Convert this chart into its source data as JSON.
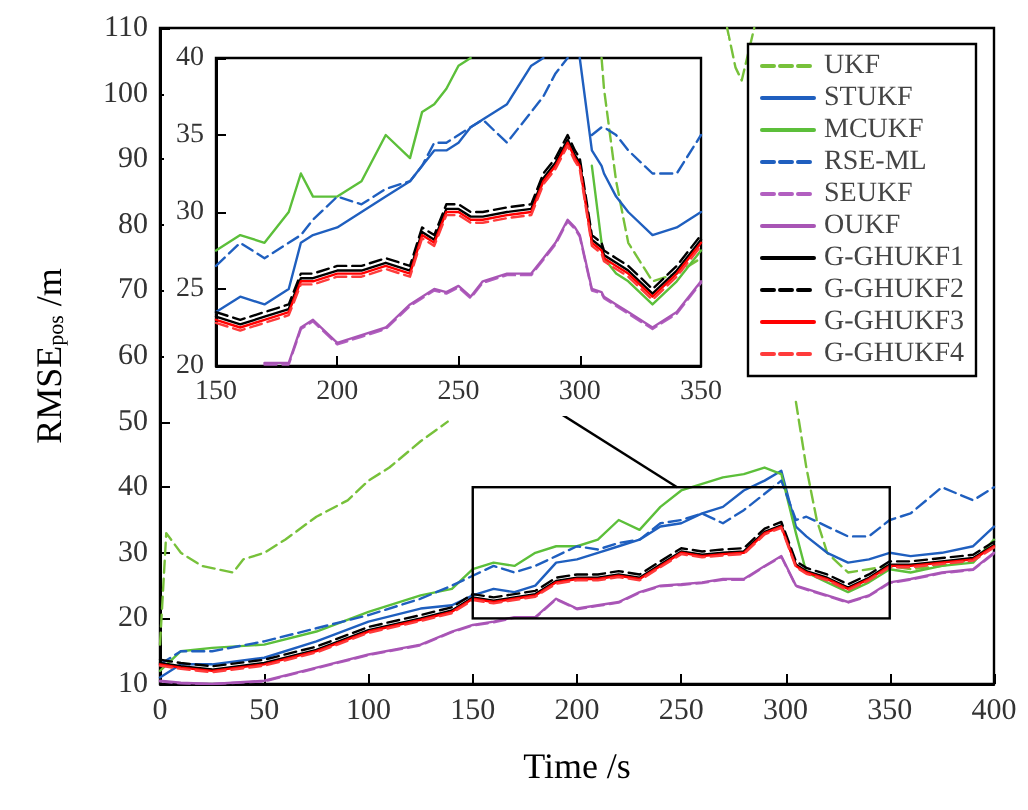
{
  "chart_data": [
    {
      "type": "line",
      "xlabel": "Time /s",
      "ylabel": "RMSE$_{pos}$ /m",
      "xlim": [
        0,
        400
      ],
      "xticks": [
        0,
        50,
        100,
        150,
        200,
        250,
        300,
        350,
        400
      ],
      "ylim": [
        10,
        110
      ],
      "yticks": [
        10,
        20,
        30,
        40,
        50,
        60,
        70,
        80,
        90,
        100,
        110
      ],
      "grid": false,
      "legend": "top right",
      "series": [
        {
          "name": "UKF",
          "color": "#77c13a",
          "line_style": "dashed",
          "x": [
            0,
            3,
            10,
            20,
            35,
            40,
            50,
            60,
            75,
            90,
            100,
            110,
            125,
            138,
            200,
            272,
            276,
            279,
            282,
            285,
            298,
            305,
            310,
            315,
            320,
            330,
            340,
            350,
            360,
            375,
            390,
            400
          ],
          "values": [
            16,
            33,
            30,
            28,
            27,
            29,
            30,
            32,
            35.5,
            38,
            41,
            43,
            47,
            50,
            null,
            110,
            104,
            102,
            106,
            110,
            null,
            53,
            43,
            35,
            30,
            27,
            27.5,
            28,
            27.5,
            28,
            29,
            31
          ]
        },
        {
          "name": "STUKF",
          "color": "#1f5fbf",
          "line_style": "solid",
          "x": [
            0,
            10,
            25,
            50,
            75,
            100,
            125,
            140,
            150,
            160,
            170,
            180,
            190,
            200,
            210,
            220,
            230,
            240,
            250,
            260,
            270,
            280,
            290,
            298,
            305,
            310,
            320,
            330,
            340,
            350,
            360,
            375,
            390,
            400
          ],
          "values": [
            11,
            13,
            13,
            14,
            16.5,
            19.5,
            21.5,
            22,
            23.5,
            24.5,
            24,
            25,
            28.5,
            29,
            30,
            31,
            32,
            34,
            34.5,
            36,
            37,
            39.5,
            41,
            42.5,
            34,
            32.5,
            30,
            28.5,
            29,
            30,
            29.5,
            30,
            31,
            34
          ]
        },
        {
          "name": "MCUKF",
          "color": "#5cbf3a",
          "line_style": "solid",
          "x": [
            0,
            10,
            25,
            50,
            75,
            100,
            125,
            140,
            150,
            160,
            170,
            180,
            190,
            200,
            210,
            220,
            230,
            240,
            250,
            260,
            270,
            280,
            290,
            298,
            305,
            310,
            320,
            330,
            340,
            350,
            360,
            375,
            390,
            400
          ],
          "values": [
            12,
            15,
            15.5,
            16,
            18,
            21,
            23.5,
            24.5,
            27.5,
            28.5,
            28,
            30,
            31,
            31,
            32,
            35,
            33.5,
            37,
            39.5,
            40.5,
            41.5,
            42,
            43,
            42,
            33,
            27,
            25.5,
            24,
            25.5,
            27.5,
            27,
            28,
            28.5,
            32
          ]
        },
        {
          "name": "RSE-ML",
          "color": "#1f5fbf",
          "line_style": "dashed",
          "x": [
            0,
            10,
            25,
            50,
            75,
            100,
            125,
            140,
            150,
            160,
            170,
            180,
            190,
            200,
            210,
            220,
            230,
            240,
            250,
            260,
            270,
            280,
            290,
            298,
            305,
            310,
            320,
            330,
            340,
            350,
            360,
            375,
            390,
            400
          ],
          "values": [
            13,
            15,
            15,
            16.5,
            18.5,
            20.5,
            23,
            25,
            26.5,
            28,
            27,
            28,
            29.5,
            31,
            30.5,
            31.5,
            32,
            34.5,
            35,
            36,
            34.5,
            36.5,
            39,
            41,
            35,
            35.5,
            34,
            32.5,
            32.5,
            35,
            36,
            40,
            38,
            40
          ]
        },
        {
          "name": "SEUKF",
          "color": "#b25fc0",
          "line_style": "dashed",
          "x": [
            0,
            10,
            25,
            50,
            75,
            100,
            125,
            140,
            150,
            160,
            170,
            180,
            190,
            200,
            210,
            220,
            230,
            240,
            250,
            260,
            270,
            280,
            290,
            298,
            305,
            310,
            320,
            330,
            340,
            350,
            360,
            375,
            390,
            400
          ],
          "values": [
            10.4,
            10.1,
            10,
            10.4,
            12.4,
            14.4,
            15.9,
            17.9,
            18.9,
            19.4,
            20.1,
            20.1,
            22.9,
            21.4,
            21.9,
            22.4,
            23.9,
            24.9,
            25.1,
            25.4,
            25.9,
            25.9,
            27.9,
            29.4,
            24.9,
            24.4,
            23.4,
            22.4,
            23.4,
            25.4,
            25.9,
            26.9,
            27.4,
            29.9
          ]
        },
        {
          "name": "OUKF",
          "color": "#a855b5",
          "line_style": "solid",
          "x": [
            0,
            10,
            25,
            50,
            75,
            100,
            125,
            140,
            150,
            160,
            170,
            180,
            190,
            200,
            210,
            220,
            230,
            240,
            250,
            260,
            270,
            280,
            290,
            298,
            305,
            310,
            320,
            330,
            340,
            350,
            360,
            375,
            390,
            400
          ],
          "values": [
            10.5,
            10.2,
            10,
            10.5,
            12.5,
            14.5,
            16,
            18,
            19,
            19.5,
            20.2,
            20.2,
            23,
            21.5,
            22,
            22.5,
            24,
            25,
            25.2,
            25.5,
            26,
            26,
            28,
            29.5,
            25,
            24.5,
            23.5,
            22.5,
            23.5,
            25.5,
            26,
            27,
            27.5,
            30
          ]
        },
        {
          "name": "G-GHUKF1",
          "color": "#000000",
          "line_style": "solid",
          "x": [
            0,
            10,
            25,
            50,
            75,
            100,
            125,
            140,
            150,
            160,
            170,
            180,
            190,
            200,
            210,
            220,
            230,
            240,
            250,
            260,
            270,
            280,
            290,
            298,
            305,
            310,
            320,
            330,
            340,
            350,
            360,
            375,
            390,
            400
          ],
          "values": [
            13.2,
            12.7,
            12.2,
            13.2,
            15.2,
            18.2,
            20,
            21.2,
            23.2,
            22.7,
            23.2,
            23.7,
            25.7,
            26.2,
            26.2,
            26.7,
            26.2,
            28.2,
            30.2,
            29.7,
            30,
            30.2,
            33.2,
            34.2,
            28.2,
            27.2,
            26.2,
            24.7,
            26.2,
            28.2,
            28.2,
            28.7,
            29.2,
            31.2
          ]
        },
        {
          "name": "G-GHUKF2",
          "color": "#000000",
          "line_style": "dashed",
          "x": [
            0,
            10,
            25,
            50,
            75,
            100,
            125,
            140,
            150,
            160,
            170,
            180,
            190,
            200,
            210,
            220,
            230,
            240,
            250,
            260,
            270,
            280,
            290,
            298,
            305,
            310,
            320,
            330,
            340,
            350,
            360,
            375,
            390,
            400
          ],
          "values": [
            13.7,
            13.2,
            12.7,
            13.7,
            15.7,
            18.7,
            20.5,
            21.7,
            23.7,
            23.2,
            23.7,
            24.2,
            26.2,
            26.7,
            26.7,
            27.2,
            26.7,
            28.7,
            30.7,
            30.2,
            30.5,
            30.7,
            33.7,
            34.7,
            28.7,
            27.7,
            26.7,
            25.2,
            26.7,
            28.7,
            28.7,
            29.2,
            29.7,
            31.7
          ]
        },
        {
          "name": "G-GHUKF3",
          "color": "#ff0000",
          "line_style": "solid",
          "x": [
            0,
            10,
            25,
            50,
            75,
            100,
            125,
            140,
            150,
            160,
            170,
            180,
            190,
            200,
            210,
            220,
            230,
            240,
            250,
            260,
            270,
            280,
            290,
            298,
            305,
            310,
            320,
            330,
            340,
            350,
            360,
            375,
            390,
            400
          ],
          "values": [
            13,
            12.5,
            12,
            13,
            15,
            18,
            19.8,
            21,
            23,
            22.5,
            23,
            23.5,
            25.5,
            26,
            26,
            26.5,
            26,
            28,
            30,
            29.5,
            29.8,
            30,
            33,
            34,
            28,
            27,
            26,
            24.5,
            26,
            28,
            28,
            28.5,
            29,
            31
          ]
        },
        {
          "name": "G-GHUKF4",
          "color": "#ff3b3b",
          "line_style": "dashed",
          "x": [
            0,
            10,
            25,
            50,
            75,
            100,
            125,
            140,
            150,
            160,
            170,
            180,
            190,
            200,
            210,
            220,
            230,
            240,
            250,
            260,
            270,
            280,
            290,
            298,
            305,
            310,
            320,
            330,
            340,
            350,
            360,
            375,
            390,
            400
          ],
          "values": [
            12.8,
            12.3,
            11.8,
            12.8,
            14.8,
            17.8,
            19.6,
            20.8,
            22.8,
            22.3,
            22.8,
            23.3,
            25.3,
            25.8,
            25.8,
            26.3,
            25.8,
            27.8,
            29.8,
            29.3,
            29.6,
            29.8,
            32.8,
            33.8,
            27.8,
            26.8,
            25.8,
            24.3,
            25.8,
            27.8,
            27.8,
            28.3,
            28.8,
            30.8
          ]
        }
      ]
    },
    {
      "type": "line",
      "xlim": [
        150,
        350
      ],
      "xticks": [
        150,
        200,
        250,
        300,
        350
      ],
      "ylim": [
        20,
        40
      ],
      "yticks": [
        20,
        25,
        30,
        35,
        40
      ],
      "grid": false,
      "series": [
        {
          "color": "#77c13a",
          "line_style": "dashed",
          "x": [
            309,
            310,
            315,
            320,
            330,
            340,
            350
          ],
          "values": [
            40,
            38,
            32,
            28,
            25.5,
            26,
            27
          ]
        },
        {
          "color": "#1f5fbf",
          "line_style": "solid",
          "x": [
            150,
            160,
            170,
            180,
            185,
            190,
            200,
            210,
            220,
            230,
            235,
            240,
            245,
            250,
            255,
            260,
            270,
            280,
            285,
            290,
            295,
            298,
            300,
            305,
            309,
            310,
            315,
            320,
            330,
            340,
            350
          ],
          "values": [
            23.5,
            24.5,
            24,
            25,
            28,
            28.5,
            29,
            30,
            31,
            32,
            33,
            34,
            34,
            34.5,
            35.5,
            36,
            37,
            39.5,
            40,
            null,
            null,
            null,
            40,
            34,
            33,
            32.5,
            31,
            30,
            28.5,
            29,
            30
          ]
        },
        {
          "color": "#5cbf3a",
          "line_style": "solid",
          "x": [
            150,
            160,
            170,
            180,
            185,
            190,
            200,
            210,
            220,
            230,
            235,
            240,
            245,
            250,
            255,
            260,
            270,
            280,
            285,
            290,
            295,
            298,
            300,
            305,
            309,
            310,
            315,
            320,
            330,
            340,
            350
          ],
          "values": [
            27.5,
            28.5,
            28,
            30,
            32.5,
            31,
            31,
            32,
            35,
            33.5,
            36.5,
            37,
            38,
            39.5,
            40,
            null,
            null,
            null,
            null,
            null,
            null,
            null,
            null,
            33,
            28,
            27,
            26,
            25.5,
            24,
            25.5,
            27.5
          ]
        },
        {
          "color": "#1f5fbf",
          "line_style": "dashed",
          "x": [
            150,
            160,
            170,
            180,
            185,
            190,
            200,
            210,
            220,
            230,
            235,
            240,
            245,
            250,
            255,
            260,
            270,
            280,
            285,
            290,
            295,
            298,
            300,
            305,
            309,
            310,
            315,
            320,
            330,
            340,
            350
          ],
          "values": [
            26.5,
            28,
            27,
            28,
            28.5,
            29.5,
            31,
            30.5,
            31.5,
            32,
            33,
            34.5,
            34.5,
            35,
            35.5,
            36,
            34.5,
            36.5,
            37.5,
            39,
            40,
            null,
            null,
            35,
            35.5,
            35.5,
            35,
            34,
            32.5,
            32.5,
            35
          ]
        },
        {
          "color": "#b25fc0",
          "line_style": "dashed",
          "x": [
            170,
            180,
            185,
            190,
            200,
            210,
            220,
            230,
            235,
            240,
            245,
            250,
            255,
            260,
            270,
            280,
            285,
            290,
            295,
            298,
            300,
            305,
            309,
            310,
            315,
            320,
            330,
            340,
            350
          ],
          "values": [
            20.1,
            20.1,
            22.4,
            22.9,
            21.4,
            21.9,
            22.4,
            23.9,
            24.4,
            24.9,
            24.7,
            25.1,
            24.4,
            25.4,
            25.9,
            25.9,
            26.9,
            27.9,
            29.4,
            28.9,
            28.4,
            24.9,
            24.7,
            24.4,
            23.9,
            23.4,
            22.4,
            23.4,
            25.4
          ]
        },
        {
          "color": "#a855b5",
          "line_style": "solid",
          "x": [
            170,
            180,
            185,
            190,
            200,
            210,
            220,
            230,
            235,
            240,
            245,
            250,
            255,
            260,
            270,
            280,
            285,
            290,
            295,
            298,
            300,
            305,
            309,
            310,
            315,
            320,
            330,
            340,
            350
          ],
          "values": [
            20.2,
            20.2,
            22.5,
            23,
            21.5,
            22,
            22.5,
            24,
            24.5,
            25,
            24.8,
            25.2,
            24.5,
            25.5,
            26,
            26,
            27,
            28,
            29.5,
            29,
            28.5,
            25,
            24.8,
            24.5,
            24,
            23.5,
            22.5,
            23.5,
            25.5
          ]
        },
        {
          "color": "#000000",
          "line_style": "solid",
          "x": [
            150,
            160,
            170,
            180,
            185,
            190,
            200,
            210,
            220,
            230,
            235,
            240,
            245,
            250,
            255,
            260,
            270,
            280,
            285,
            290,
            295,
            298,
            300,
            305,
            309,
            310,
            315,
            320,
            330,
            340,
            350
          ],
          "values": [
            23.2,
            22.7,
            23.2,
            23.7,
            25.7,
            25.7,
            26.2,
            26.2,
            26.7,
            26.2,
            28.7,
            28.2,
            30.2,
            30.2,
            29.7,
            29.7,
            30,
            30.2,
            32.2,
            33.2,
            34.7,
            33.7,
            33.2,
            28.2,
            27.7,
            27.2,
            26.7,
            26.2,
            24.7,
            26.2,
            28.2
          ]
        },
        {
          "color": "#000000",
          "line_style": "dashed",
          "x": [
            150,
            160,
            170,
            180,
            185,
            190,
            200,
            210,
            220,
            230,
            235,
            240,
            245,
            250,
            255,
            260,
            270,
            280,
            285,
            290,
            295,
            298,
            300,
            305,
            309,
            310,
            315,
            320,
            330,
            340,
            350
          ],
          "values": [
            23.5,
            23,
            23.5,
            24,
            26,
            26,
            26.5,
            26.5,
            27,
            26.5,
            29,
            28.5,
            30.5,
            30.5,
            30,
            30,
            30.3,
            30.5,
            32.5,
            33.5,
            35,
            34,
            33.5,
            28.5,
            28,
            27.5,
            27,
            26.5,
            25,
            26.5,
            28.5
          ]
        },
        {
          "color": "#ff0000",
          "line_style": "solid",
          "x": [
            150,
            160,
            170,
            180,
            185,
            190,
            200,
            210,
            220,
            230,
            235,
            240,
            245,
            250,
            255,
            260,
            270,
            280,
            285,
            290,
            295,
            298,
            300,
            305,
            309,
            310,
            315,
            320,
            330,
            340,
            350
          ],
          "values": [
            23,
            22.5,
            23,
            23.5,
            25.5,
            25.5,
            26,
            26,
            26.5,
            26,
            28.5,
            28,
            30,
            30,
            29.5,
            29.5,
            29.8,
            30,
            32,
            33,
            34.5,
            33.5,
            33,
            28,
            27.5,
            27,
            26.5,
            26,
            24.5,
            26,
            28
          ]
        },
        {
          "color": "#ff3b3b",
          "line_style": "dashed",
          "x": [
            150,
            160,
            170,
            180,
            185,
            190,
            200,
            210,
            220,
            230,
            235,
            240,
            245,
            250,
            255,
            260,
            270,
            280,
            285,
            290,
            295,
            298,
            300,
            305,
            309,
            310,
            315,
            320,
            330,
            340,
            350
          ],
          "values": [
            22.8,
            22.3,
            22.8,
            23.3,
            25.3,
            25.3,
            25.8,
            25.8,
            26.3,
            25.8,
            28.3,
            27.8,
            29.8,
            29.8,
            29.3,
            29.3,
            29.6,
            29.8,
            31.8,
            32.8,
            34.3,
            33.3,
            32.8,
            27.8,
            27.3,
            26.8,
            26.3,
            25.8,
            24.3,
            25.8,
            27.8
          ]
        }
      ]
    }
  ]
}
